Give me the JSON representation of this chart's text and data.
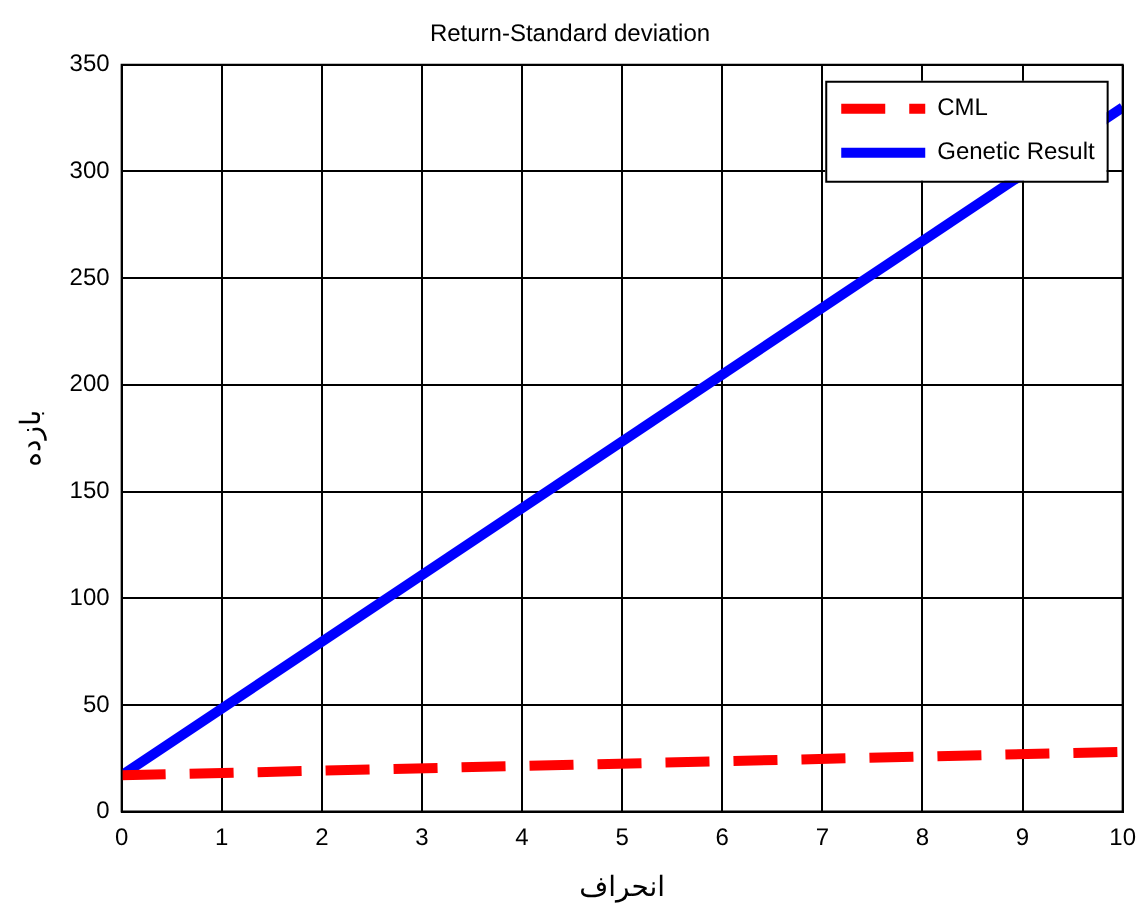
{
  "chart_data": {
    "type": "line",
    "title": "Return-Standard deviation",
    "xlabel": "انحراف",
    "ylabel": "بازده",
    "x": [
      0,
      10
    ],
    "xlim": [
      0,
      10
    ],
    "xticks": [
      0,
      1,
      2,
      3,
      4,
      5,
      6,
      7,
      8,
      9,
      10
    ],
    "ylim": [
      0,
      350
    ],
    "yticks": [
      0,
      50,
      100,
      150,
      200,
      250,
      300,
      350
    ],
    "series": [
      {
        "name": "CML",
        "color": "#ff0000",
        "values": [
          17,
          28
        ],
        "line_style": "dashed"
      },
      {
        "name": "Genetic Result",
        "color": "#0000ff",
        "values": [
          17,
          330
        ],
        "line_style": "solid"
      }
    ],
    "grid": true,
    "legend": "top right",
    "marker": "none"
  }
}
